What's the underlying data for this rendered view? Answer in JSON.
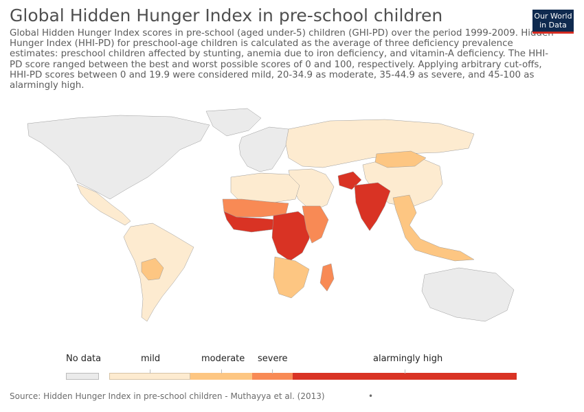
{
  "header": {
    "title": "Global Hidden Hunger Index in pre-school children",
    "subtitle": "Global Hidden Hunger Index scores in pre-school (aged under-5) children (GHI-PD) over the period 1999-2009. Hidden Hunger Index (HHI-PD) for preschool-age children is calculated as the average of three deficiency prevalence estimates: preschool children affected by stunting, anemia due to iron deficiency, and vitamin-A deficiency. The HHI-PD score ranged between the best and worst possible scores of 0 and 100, respectively. Applying arbitrary cut-offs, HHI-PD scores between 0 and 19.9 were considered mild, 20-34.9 as moderate, 35-44.9 as severe, and 45-100 as alarmingly high.",
    "logo_line1": "Our World",
    "logo_line2": "in Data"
  },
  "legend": {
    "no_data": {
      "label": "No data",
      "color": "#ebebeb"
    },
    "bins": [
      {
        "label": "mild",
        "color": "#fdebd0"
      },
      {
        "label": "moderate",
        "color": "#fdc682"
      },
      {
        "label": "severe",
        "color": "#f88a55"
      },
      {
        "label": "alarmingly high",
        "color": "#d93324"
      }
    ]
  },
  "map": {
    "projection": "world",
    "regions": [
      {
        "region": "North America & Greenland",
        "category": "No data"
      },
      {
        "region": "Mexico & Central America",
        "category": "mild"
      },
      {
        "region": "South America",
        "category": "mild"
      },
      {
        "region": "Bolivia & Paraguay",
        "category": "moderate"
      },
      {
        "region": "Europe",
        "category": "No data"
      },
      {
        "region": "Russia & Central Asia",
        "category": "mild"
      },
      {
        "region": "China",
        "category": "mild"
      },
      {
        "region": "Mongolia",
        "category": "moderate"
      },
      {
        "region": "Middle East",
        "category": "mild"
      },
      {
        "region": "Afghanistan",
        "category": "alarmingly high"
      },
      {
        "region": "India",
        "category": "alarmingly high"
      },
      {
        "region": "Southeast Asia",
        "category": "moderate"
      },
      {
        "region": "North Africa",
        "category": "mild"
      },
      {
        "region": "West Africa Sahel",
        "category": "severe"
      },
      {
        "region": "West Africa Coast",
        "category": "alarmingly high"
      },
      {
        "region": "Central Africa",
        "category": "alarmingly high"
      },
      {
        "region": "East Africa",
        "category": "severe"
      },
      {
        "region": "Southern Africa",
        "category": "moderate"
      },
      {
        "region": "Madagascar",
        "category": "severe"
      },
      {
        "region": "Australia",
        "category": "No data"
      }
    ]
  },
  "footer": {
    "source": "Source: Hidden Hunger Index in pre-school children - Muthayya et al. (2013)",
    "dot": "•"
  }
}
